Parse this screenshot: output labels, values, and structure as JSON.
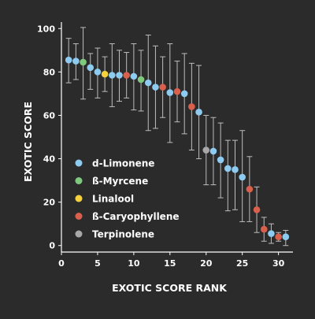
{
  "chart_data": {
    "type": "scatter",
    "title": "",
    "xlabel": "EXOTIC SCORE RANK",
    "ylabel": "EXOTIC SCORE",
    "xlim": [
      0,
      32
    ],
    "ylim": [
      -3,
      103
    ],
    "xticks": [
      0,
      5,
      10,
      15,
      20,
      25,
      30
    ],
    "yticks": [
      0,
      20,
      40,
      60,
      80,
      100
    ],
    "grid": false,
    "legend_position": "left-center",
    "error_bars": true,
    "colors": {
      "d-Limonene": "#8ecbf0",
      "ß-Myrcene": "#7fc97f",
      "Linalool": "#f5d23c",
      "ß-Caryophyllene": "#d9604c",
      "Terpinolene": "#a8a8a8"
    },
    "series": [
      {
        "name": "d-Limonene",
        "points": [
          {
            "x": 1,
            "y": 85.5,
            "lo": 75,
            "hi": 95.5
          },
          {
            "x": 2,
            "y": 85,
            "lo": 76.5,
            "hi": 93
          },
          {
            "x": 4,
            "y": 82,
            "lo": 72,
            "hi": 88.5
          },
          {
            "x": 5,
            "y": 80,
            "lo": 68,
            "hi": 91
          },
          {
            "x": 7,
            "y": 78.5,
            "lo": 64,
            "hi": 93
          },
          {
            "x": 8,
            "y": 78.5,
            "lo": 66.5,
            "hi": 90
          },
          {
            "x": 10,
            "y": 78,
            "lo": 62.5,
            "hi": 93
          },
          {
            "x": 12,
            "y": 75,
            "lo": 53,
            "hi": 97
          },
          {
            "x": 13,
            "y": 73,
            "lo": 54,
            "hi": 92
          },
          {
            "x": 15,
            "y": 70.5,
            "lo": 47.5,
            "hi": 93
          },
          {
            "x": 17,
            "y": 70,
            "lo": 51.5,
            "hi": 88.5
          },
          {
            "x": 19,
            "y": 61.5,
            "lo": 40,
            "hi": 83
          },
          {
            "x": 21,
            "y": 43.5,
            "lo": 28,
            "hi": 59
          },
          {
            "x": 22,
            "y": 39.5,
            "lo": 22,
            "hi": 56.5
          },
          {
            "x": 23,
            "y": 35.5,
            "lo": 16,
            "hi": 48.5
          },
          {
            "x": 24,
            "y": 35,
            "lo": 16.5,
            "hi": 48.5
          },
          {
            "x": 25,
            "y": 31.5,
            "lo": 11,
            "hi": 53
          },
          {
            "x": 29,
            "y": 5.5,
            "lo": 1,
            "hi": 10
          },
          {
            "x": 31,
            "y": 4,
            "lo": 0,
            "hi": 7
          }
        ]
      },
      {
        "name": "ß-Myrcene",
        "points": [
          {
            "x": 3,
            "y": 84.5,
            "lo": 67.5,
            "hi": 100.5
          },
          {
            "x": 11,
            "y": 76.5,
            "lo": 62,
            "hi": 90
          }
        ]
      },
      {
        "name": "Linalool",
        "points": [
          {
            "x": 6,
            "y": 79,
            "lo": 71,
            "hi": 87
          }
        ]
      },
      {
        "name": "ß-Caryophyllene",
        "points": [
          {
            "x": 9,
            "y": 78.5,
            "lo": 68,
            "hi": 89
          },
          {
            "x": 14,
            "y": 73,
            "lo": 59,
            "hi": 87
          },
          {
            "x": 16,
            "y": 71,
            "lo": 57,
            "hi": 85
          },
          {
            "x": 18,
            "y": 64,
            "lo": 44,
            "hi": 84
          },
          {
            "x": 26,
            "y": 26,
            "lo": 11,
            "hi": 41
          },
          {
            "x": 27,
            "y": 16.5,
            "lo": 6,
            "hi": 27
          },
          {
            "x": 28,
            "y": 7.5,
            "lo": 2,
            "hi": 13
          },
          {
            "x": 30,
            "y": 4,
            "lo": 2,
            "hi": 6
          }
        ]
      },
      {
        "name": "Terpinolene",
        "points": [
          {
            "x": 20,
            "y": 44,
            "lo": 28,
            "hi": 60
          }
        ]
      }
    ]
  }
}
